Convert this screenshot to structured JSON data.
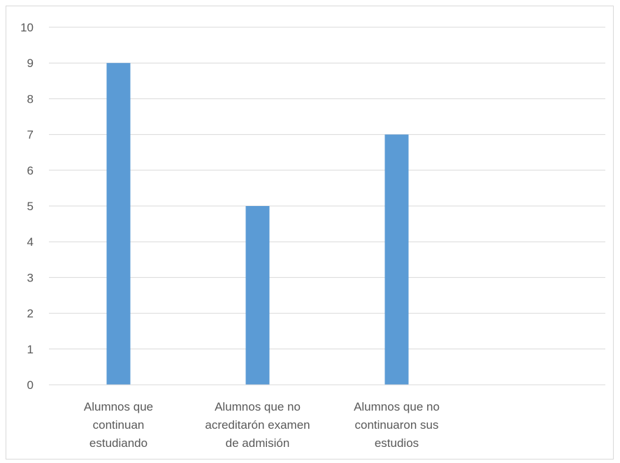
{
  "chart_data": {
    "type": "bar",
    "categories": [
      [
        "Alumnos que",
        "continuan",
        "estudiando"
      ],
      [
        "Alumnos que no",
        "acreditarón examen",
        "de admisión"
      ],
      [
        "Alumnos que no",
        "continuaron sus",
        "estudios"
      ],
      []
    ],
    "values": [
      9,
      5,
      7,
      null
    ],
    "ylim": [
      0,
      10
    ],
    "yticks": [
      0,
      1,
      2,
      3,
      4,
      5,
      6,
      7,
      8,
      9,
      10
    ],
    "grid": true,
    "legend": "none",
    "colors": {
      "bar": "#5b9bd5",
      "grid": "#d9d9d9",
      "axis": "#d9d9d9",
      "text": "#595959",
      "border": "#d9d9d9"
    }
  }
}
